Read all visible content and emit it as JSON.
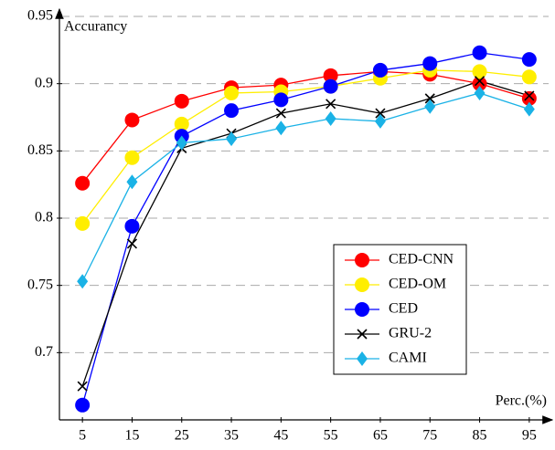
{
  "chart_data": {
    "type": "line",
    "x_label": "Perc.(%)",
    "y_label": "Accurancy",
    "x": [
      5,
      15,
      25,
      35,
      45,
      55,
      65,
      75,
      85,
      95
    ],
    "xlim": [
      0,
      100
    ],
    "xticks": [
      5,
      15,
      25,
      35,
      45,
      55,
      65,
      75,
      85,
      95
    ],
    "ylim": [
      0.65,
      0.95
    ],
    "yticks": [
      0.7,
      0.75,
      0.8,
      0.85,
      0.9,
      0.95
    ],
    "grid": true,
    "legend": "lower right",
    "series": [
      {
        "name": "CED-CNN",
        "color": "#ff0000",
        "marker": "circle",
        "values": [
          0.826,
          0.873,
          0.887,
          0.897,
          0.899,
          0.906,
          0.909,
          0.907,
          0.9,
          0.889
        ]
      },
      {
        "name": "CED-OM",
        "color": "#ffee00",
        "marker": "circle",
        "values": [
          0.796,
          0.845,
          0.87,
          0.893,
          0.894,
          0.898,
          0.904,
          0.91,
          0.909,
          0.905
        ]
      },
      {
        "name": "CED",
        "color": "#0000ff",
        "marker": "circle",
        "values": [
          0.661,
          0.794,
          0.861,
          0.88,
          0.888,
          0.898,
          0.91,
          0.915,
          0.923,
          0.918
        ]
      },
      {
        "name": "GRU-2",
        "color": "#000000",
        "marker": "cross",
        "values": [
          0.675,
          0.781,
          0.852,
          0.863,
          0.878,
          0.885,
          0.878,
          0.889,
          0.902,
          0.891
        ]
      },
      {
        "name": "CAMI",
        "color": "#1ab2e6",
        "marker": "diamond",
        "values": [
          0.753,
          0.827,
          0.856,
          0.859,
          0.867,
          0.874,
          0.872,
          0.883,
          0.893,
          0.881
        ]
      }
    ]
  }
}
